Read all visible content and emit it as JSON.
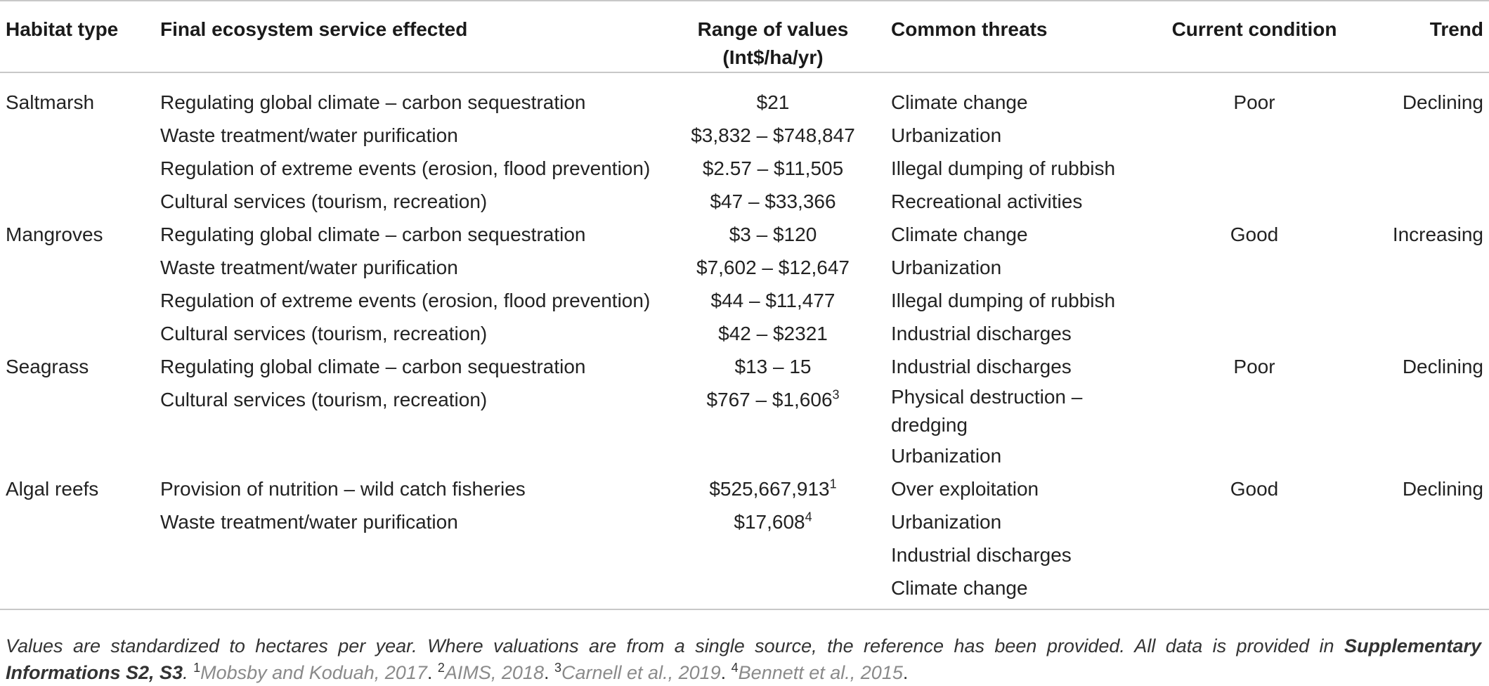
{
  "table": {
    "headers": {
      "habitat": "Habitat type",
      "service": "Final ecosystem service effected",
      "range_line1": "Range of values",
      "range_line2": "(Int$/ha/yr)",
      "threats": "Common threats",
      "condition": "Current condition",
      "trend": "Trend"
    },
    "rows": [
      {
        "habitat": "Saltmarsh",
        "service": "Regulating global climate – carbon sequestration",
        "value": "$21",
        "sup": "",
        "threat": "Climate change",
        "condition": "Poor",
        "trend": "Declining"
      },
      {
        "habitat": "",
        "service": "Waste treatment/water purification",
        "value": "$3,832 – $748,847",
        "sup": "",
        "threat": "Urbanization",
        "condition": "",
        "trend": ""
      },
      {
        "habitat": "",
        "service": "Regulation of extreme events (erosion, flood prevention)",
        "value": "$2.57 – $11,505",
        "sup": "",
        "threat": "Illegal dumping of rubbish",
        "condition": "",
        "trend": ""
      },
      {
        "habitat": "",
        "service": "Cultural services (tourism, recreation)",
        "value": "$47 – $33,366",
        "sup": "",
        "threat": "Recreational activities",
        "condition": "",
        "trend": ""
      },
      {
        "habitat": "Mangroves",
        "service": "Regulating global climate – carbon sequestration",
        "value": "$3 – $120",
        "sup": "",
        "threat": "Climate change",
        "condition": "Good",
        "trend": "Increasing"
      },
      {
        "habitat": "",
        "service": "Waste treatment/water purification",
        "value": "$7,602 – $12,647",
        "sup": "",
        "threat": "Urbanization",
        "condition": "",
        "trend": ""
      },
      {
        "habitat": "",
        "service": "Regulation of extreme events (erosion, flood prevention)",
        "value": "$44 – $11,477",
        "sup": "",
        "threat": "Illegal dumping of rubbish",
        "condition": "",
        "trend": ""
      },
      {
        "habitat": "",
        "service": "Cultural services (tourism, recreation)",
        "value": "$42 – $2321",
        "sup": "",
        "threat": "Industrial discharges",
        "condition": "",
        "trend": ""
      },
      {
        "habitat": "Seagrass",
        "service": "Regulating global climate – carbon sequestration",
        "value": "$13 – 15",
        "sup": "",
        "threat": "Industrial discharges",
        "condition": "Poor",
        "trend": "Declining"
      },
      {
        "habitat": "",
        "service": "Cultural services (tourism, recreation)",
        "value": "$767 – $1,606",
        "sup": "3",
        "threat": "Physical destruction – dredging",
        "condition": "",
        "trend": ""
      },
      {
        "habitat": "",
        "service": "",
        "value": "",
        "sup": "",
        "threat": "Urbanization",
        "condition": "",
        "trend": ""
      },
      {
        "habitat": "Algal reefs",
        "service": "Provision of nutrition – wild catch fisheries",
        "value": "$525,667,913",
        "sup": "1",
        "threat": "Over exploitation",
        "condition": "Good",
        "trend": "Declining"
      },
      {
        "habitat": "",
        "service": "Waste treatment/water purification",
        "value": "$17,608",
        "sup": "4",
        "threat": "Urbanization",
        "condition": "",
        "trend": ""
      },
      {
        "habitat": "",
        "service": "",
        "value": "",
        "sup": "",
        "threat": "Industrial discharges",
        "condition": "",
        "trend": ""
      },
      {
        "habitat": "",
        "service": "",
        "value": "",
        "sup": "",
        "threat": "Climate change",
        "condition": "",
        "trend": ""
      }
    ]
  },
  "footnote": {
    "text": "Values are standardized to hectares per year. Where valuations are from a single source, the reference has been provided. All data is provided in ",
    "supp": "Supplementary Informations S2, S3",
    "period": ".",
    "refs": [
      {
        "num": "1",
        "text": "Mobsby and Koduah, 2017"
      },
      {
        "num": "2",
        "text": "AIMS, 2018"
      },
      {
        "num": "3",
        "text": "Carnell et al., 2019"
      },
      {
        "num": "4",
        "text": "Bennett et al., 2015"
      }
    ]
  }
}
